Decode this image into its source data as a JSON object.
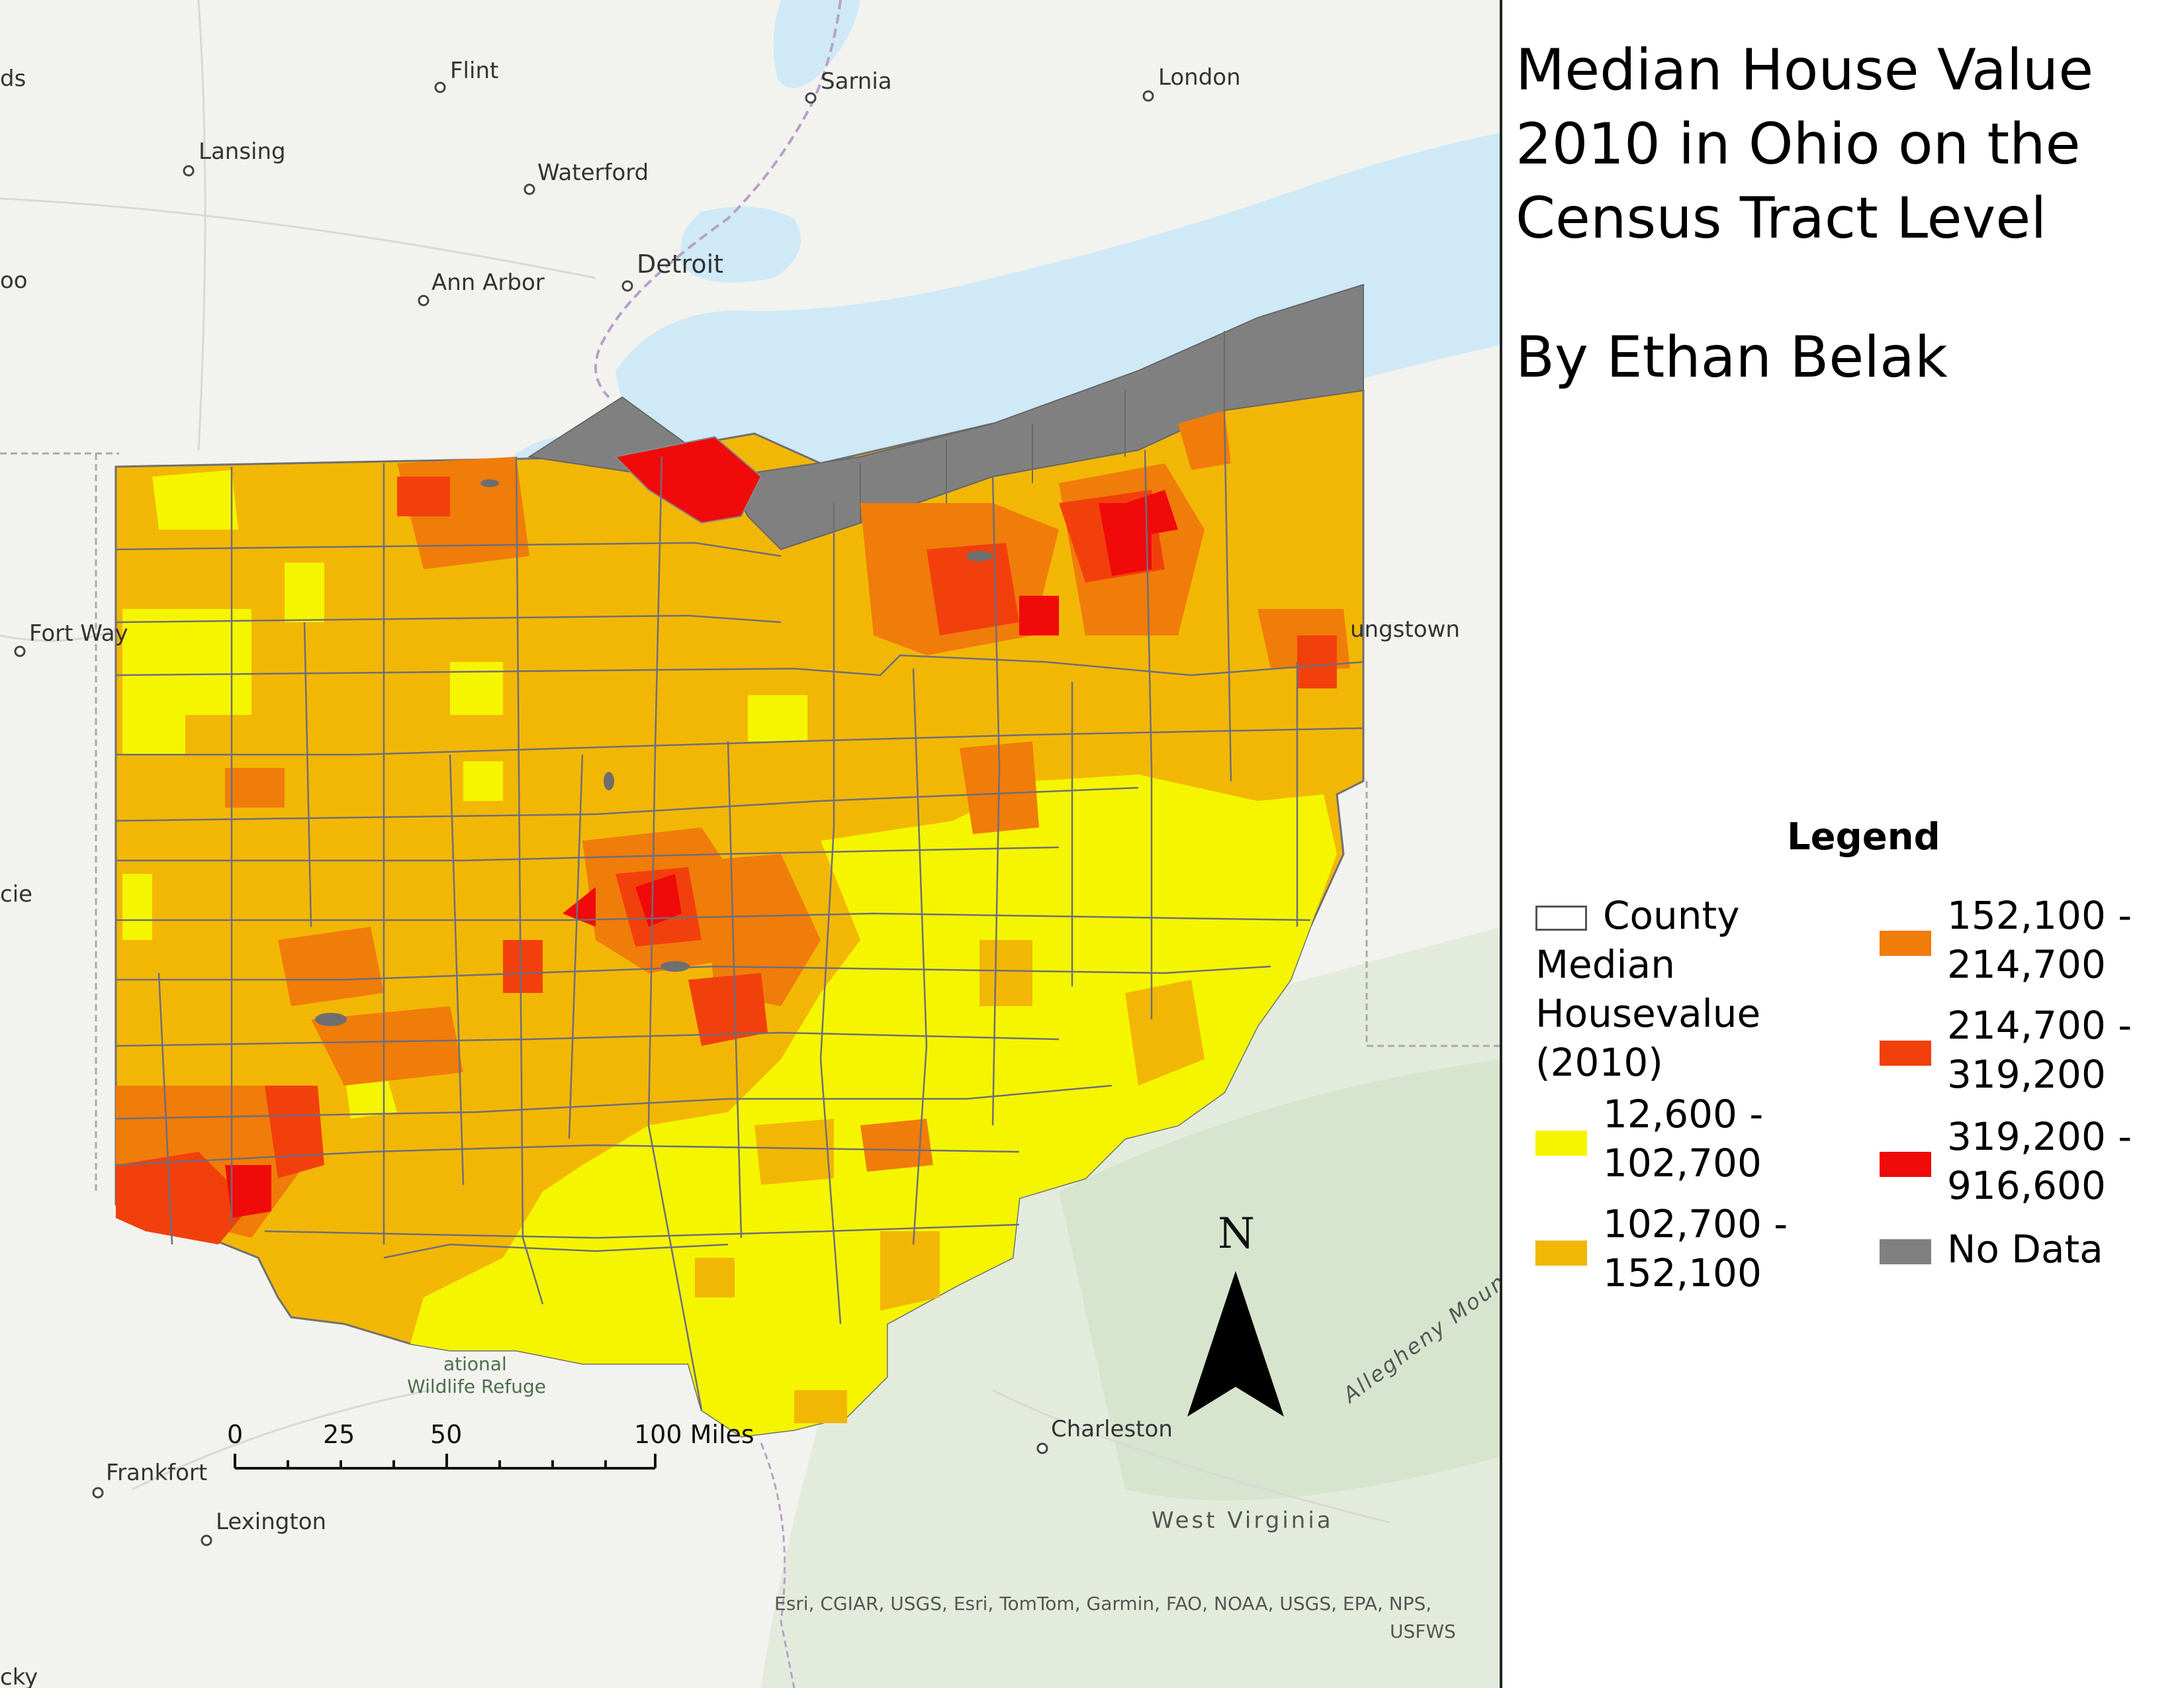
{
  "title": {
    "line1": "Median House Value",
    "line2": "2010 in Ohio on the",
    "line3": "Census Tract Level"
  },
  "author": "By Ethan Belak",
  "legend": {
    "title": "Legend",
    "county_label": "County",
    "field_label_lines": [
      "Median",
      "Housevalue",
      "(2010)"
    ],
    "classes": [
      {
        "line1": "12,600 -",
        "line2": "102,700",
        "color": "#f5f500"
      },
      {
        "line1": "102,700 -",
        "line2": "152,100",
        "color": "#f2b705"
      },
      {
        "line1": "152,100 -",
        "line2": "214,700",
        "color": "#f07c0a"
      },
      {
        "line1": "214,700 -",
        "line2": "319,200",
        "color": "#f2400c"
      },
      {
        "line1": "319,200 -",
        "line2": "916,600",
        "color": "#f00a0a"
      }
    ],
    "no_data": {
      "label": "No Data",
      "color": "#808080"
    }
  },
  "basemap": {
    "water_color": "#cfe9f7",
    "land_color": "#f2f2ee",
    "cities": [
      {
        "name": "Flint"
      },
      {
        "name": "Sarnia"
      },
      {
        "name": "London"
      },
      {
        "name": "Lansing"
      },
      {
        "name": "Waterford"
      },
      {
        "name": "Detroit"
      },
      {
        "name": "Ann Arbor"
      },
      {
        "name": "Fort Way"
      },
      {
        "name": "ungstown"
      },
      {
        "name": "Charleston"
      },
      {
        "name": "Frankfort"
      },
      {
        "name": "Lexington"
      },
      {
        "name": "ds"
      },
      {
        "name": "oo"
      },
      {
        "name": "cie"
      },
      {
        "name": "cky"
      }
    ],
    "region_label": "West Virginia",
    "mountain_label": "Allegheny Mounta",
    "park_label_lines": [
      "ational",
      "Wildlife Refuge"
    ],
    "attribution_lines": [
      "Esri, CGIAR, USGS, Esri, TomTom, Garmin, FAO, NOAA, USGS, EPA, NPS,",
      "USFWS"
    ]
  },
  "scale_bar": {
    "ticks": [
      "0",
      "25",
      "50",
      "100 Miles"
    ]
  },
  "north_arrow": {
    "label": "N"
  }
}
